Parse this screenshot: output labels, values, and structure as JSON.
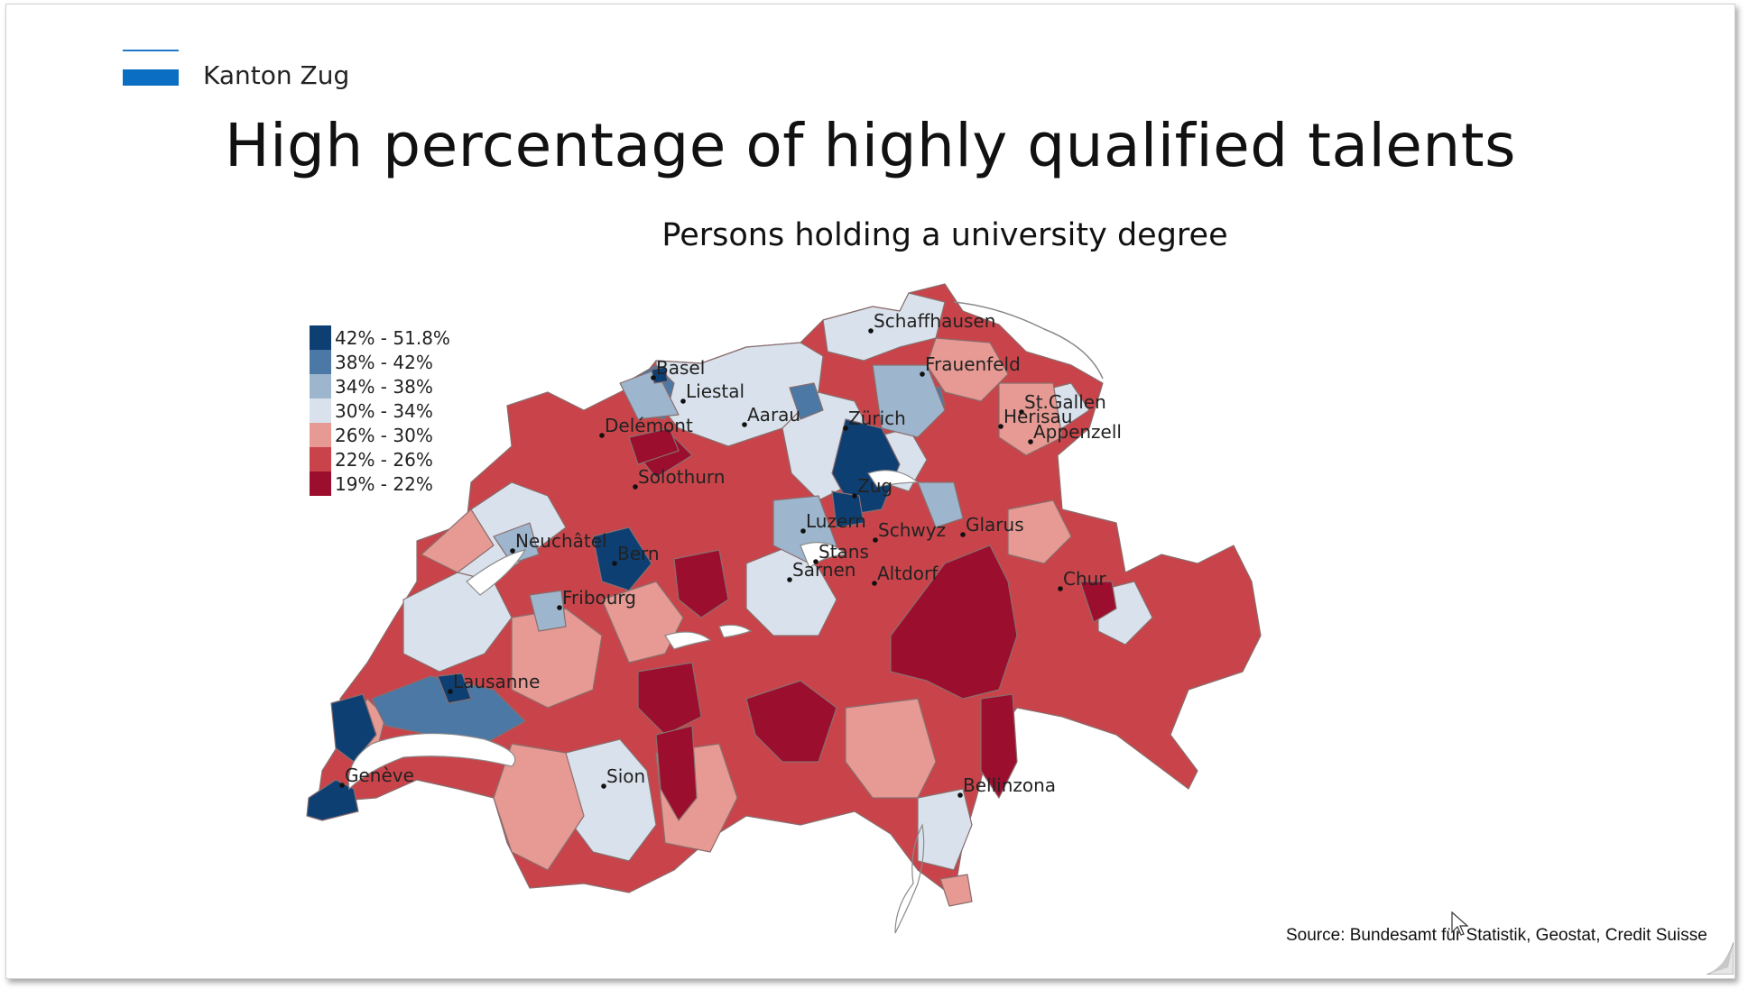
{
  "header": {
    "brand": "Kanton Zug",
    "title": "High percentage of highly qualified talents",
    "subtitle": "Persons holding a university degree"
  },
  "legend": [
    {
      "label": "42% - 51.8%",
      "color": "#0e3f73"
    },
    {
      "label": "38% - 42%",
      "color": "#4b78a5"
    },
    {
      "label": "34% - 38%",
      "color": "#9db5cd"
    },
    {
      "label": "30% - 34%",
      "color": "#d9e2ec"
    },
    {
      "label": "26% - 30%",
      "color": "#e69a93"
    },
    {
      "label": "22% - 26%",
      "color": "#c9444a"
    },
    {
      "label": "19% - 22%",
      "color": "#9b0e2e"
    }
  ],
  "cities": [
    {
      "name": "Schaffhausen"
    },
    {
      "name": "Basel"
    },
    {
      "name": "Frauenfeld"
    },
    {
      "name": "Liestal"
    },
    {
      "name": "St.Gallen"
    },
    {
      "name": "Aarau"
    },
    {
      "name": "Zürich"
    },
    {
      "name": "Herisau"
    },
    {
      "name": "Delémont"
    },
    {
      "name": "Appenzell"
    },
    {
      "name": "Solothurn"
    },
    {
      "name": "Zug"
    },
    {
      "name": "Glarus"
    },
    {
      "name": "Luzern"
    },
    {
      "name": "Schwyz"
    },
    {
      "name": "Neuchâtel"
    },
    {
      "name": "Stans"
    },
    {
      "name": "Bern"
    },
    {
      "name": "Sarnen"
    },
    {
      "name": "Altdorf"
    },
    {
      "name": "Chur"
    },
    {
      "name": "Fribourg"
    },
    {
      "name": "Lausanne"
    },
    {
      "name": "Sion"
    },
    {
      "name": "Genève"
    },
    {
      "name": "Bellinzona"
    }
  ],
  "source": "Source: Bundesamt für Statistik, Geostat, Credit Suisse"
}
